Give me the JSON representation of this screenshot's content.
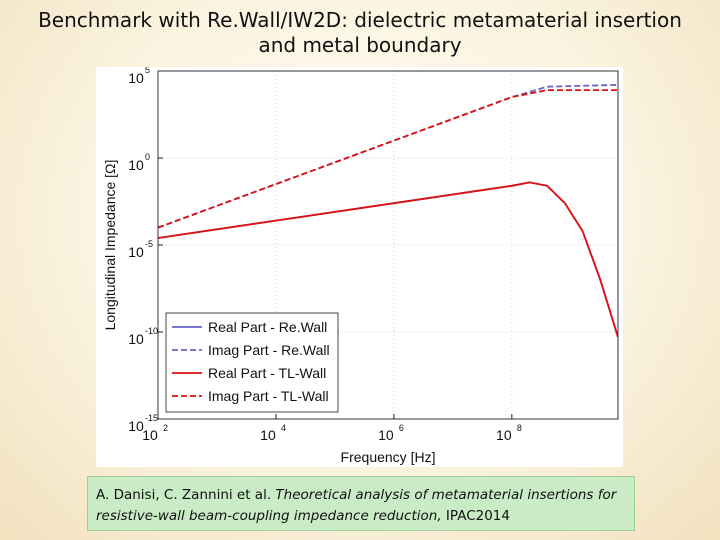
{
  "slide": {
    "title_line1": "Benchmark with Re.Wall/IW2D: dielectric metamaterial insertion",
    "title_line2": "and metal boundary"
  },
  "citation": {
    "authors": "A. Danisi, C. Zannini et al. ",
    "paper_title": "Theoretical analysis of metamaterial insertions for resistive-wall beam-coupling impedance reduction,",
    "venue": " IPAC2014"
  },
  "colors": {
    "rewall": "#6464c8",
    "tlwall": "#e01010"
  },
  "chart_data": {
    "type": "line",
    "xlabel": "Frequency [Hz]",
    "ylabel": "Longitudinal Impedance [Ω]",
    "xscale": "log",
    "yscale": "log",
    "xlim_exp": [
      2,
      9.8
    ],
    "ylim_exp": [
      -15,
      5
    ],
    "xticks": [
      {
        "base": "10",
        "exp": "2"
      },
      {
        "base": "10",
        "exp": "4"
      },
      {
        "base": "10",
        "exp": "6"
      },
      {
        "base": "10",
        "exp": "8"
      }
    ],
    "yticks": [
      {
        "base": "10",
        "exp": "5"
      },
      {
        "base": "10",
        "exp": "0"
      },
      {
        "base": "10",
        "exp": "-5"
      },
      {
        "base": "10",
        "exp": "-10"
      },
      {
        "base": "10",
        "exp": "-15"
      }
    ],
    "legend_position": "bottom-left",
    "series": [
      {
        "name": "Real Part - Re.Wall",
        "style": "solid",
        "color": "#6464c8",
        "points_log10": [
          [
            2,
            -4.6
          ],
          [
            4,
            -3.6
          ],
          [
            6,
            -2.6
          ],
          [
            8,
            -1.6
          ],
          [
            8.3,
            -1.4
          ],
          [
            8.6,
            -1.6
          ],
          [
            8.9,
            -2.6
          ],
          [
            9.2,
            -4.2
          ],
          [
            9.5,
            -7.0
          ],
          [
            9.8,
            -10.3
          ]
        ]
      },
      {
        "name": "Imag Part - Re.Wall",
        "style": "dashed",
        "color": "#6464c8",
        "points_log10": [
          [
            2,
            -4.0
          ],
          [
            4,
            -1.5
          ],
          [
            6,
            1.0
          ],
          [
            8,
            3.5
          ],
          [
            8.6,
            4.1
          ],
          [
            9.8,
            4.2
          ]
        ]
      },
      {
        "name": "Real Part - TL-Wall",
        "style": "solid",
        "color": "#e01010",
        "points_log10": [
          [
            2,
            -4.6
          ],
          [
            4,
            -3.6
          ],
          [
            6,
            -2.6
          ],
          [
            8,
            -1.6
          ],
          [
            8.3,
            -1.4
          ],
          [
            8.6,
            -1.6
          ],
          [
            8.9,
            -2.6
          ],
          [
            9.2,
            -4.2
          ],
          [
            9.5,
            -7.0
          ],
          [
            9.8,
            -10.3
          ]
        ]
      },
      {
        "name": "Imag Part - TL-Wall",
        "style": "dashed",
        "color": "#e01010",
        "points_log10": [
          [
            2,
            -4.0
          ],
          [
            4,
            -1.5
          ],
          [
            6,
            1.0
          ],
          [
            8,
            3.5
          ],
          [
            8.6,
            3.9
          ],
          [
            9.8,
            3.9
          ]
        ]
      }
    ]
  }
}
